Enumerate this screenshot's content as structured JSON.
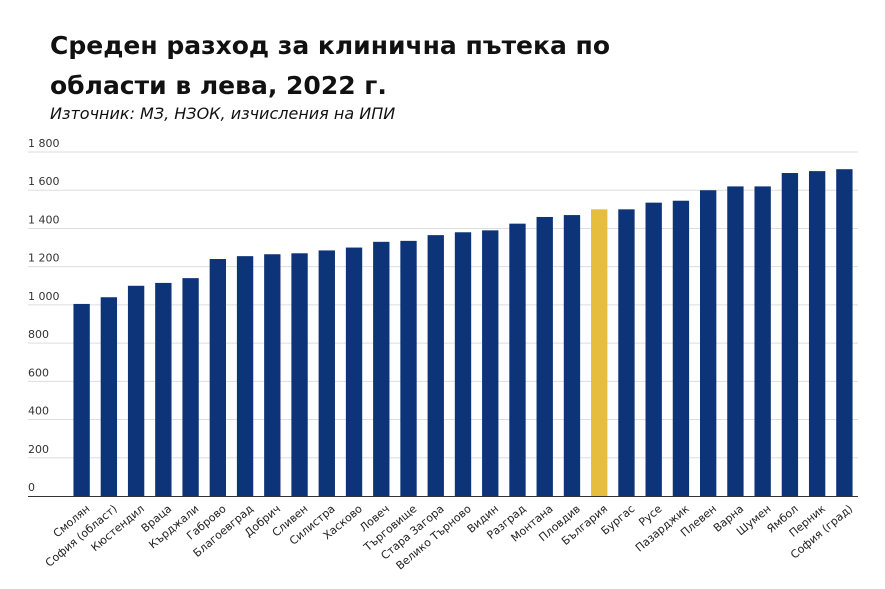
{
  "header": {
    "title": "Среден разход за клинична пътека по области в лева, 2022 г.",
    "subtitle": "Източник: МЗ, НЗОК, изчисления на ИПИ"
  },
  "colors": {
    "bar": "#0d3478",
    "highlight": "#e6bd3c"
  },
  "chart_data": {
    "type": "bar",
    "title": "Среден разход за клинична пътека по области в лева, 2022 г.",
    "subtitle": "Източник: МЗ, НЗОК, изчисления на ИПИ",
    "xlabel": "",
    "ylabel": "",
    "ylim": [
      0,
      1800
    ],
    "yticks": [
      0,
      200,
      400,
      600,
      800,
      1000,
      1200,
      1400,
      1600,
      1800
    ],
    "ytick_labels": [
      "0",
      "200",
      "400",
      "600",
      "800",
      "1 000",
      "1 200",
      "1 400",
      "1 600",
      "1 800"
    ],
    "grid": true,
    "legend": "none",
    "highlight_category": "България",
    "categories": [
      "Смолян",
      "София (област)",
      "Кюстендил",
      "Враца",
      "Кърджали",
      "Габрово",
      "Благоевград",
      "Добрич",
      "Сливен",
      "Силистра",
      "Хасково",
      "Ловеч",
      "Търговище",
      "Стара Загора",
      "Велико Търново",
      "Видин",
      "Разград",
      "Монтана",
      "Пловдив",
      "България",
      "Бургас",
      "Русе",
      "Пазарджик",
      "Плевен",
      "Варна",
      "Шумен",
      "Ямбол",
      "Перник",
      "София (град)"
    ],
    "values": [
      1005,
      1040,
      1100,
      1115,
      1140,
      1240,
      1255,
      1265,
      1270,
      1285,
      1300,
      1330,
      1335,
      1365,
      1380,
      1390,
      1425,
      1460,
      1470,
      1500,
      1500,
      1535,
      1545,
      1600,
      1620,
      1620,
      1690,
      1700,
      1710
    ]
  }
}
